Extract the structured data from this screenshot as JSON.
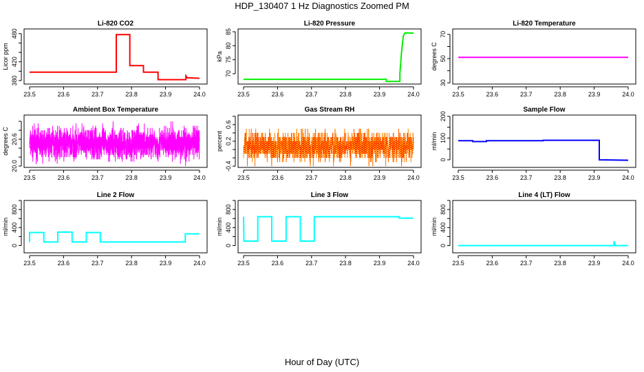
{
  "title": "HDP_130407  1 Hz Diagnostics Zoomed PM",
  "xlabel": "Hour of Day (UTC)",
  "chart_data": [
    {
      "type": "line",
      "title": "Li-820 CO2",
      "ylabel": "Licor ppm",
      "color": "#ff0000",
      "xlim": [
        23.5,
        24.0
      ],
      "ylim": [
        372.6,
        490
      ],
      "yticks": [
        380,
        400,
        420,
        440,
        460,
        480
      ],
      "ylabels": [
        "380",
        "420",
        "480"
      ],
      "ylabel_values": [
        380,
        420,
        480
      ],
      "series": [
        {
          "name": "CO2",
          "x": [
            23.5,
            23.755,
            23.755,
            23.795,
            23.795,
            23.835,
            23.835,
            23.878,
            23.878,
            23.96,
            23.96,
            23.962,
            23.962,
            24.0
          ],
          "y": [
            398,
            398,
            478,
            478,
            412,
            412,
            398,
            398,
            382,
            382,
            390,
            388,
            386,
            385
          ]
        }
      ]
    },
    {
      "type": "line",
      "title": "Li-820 Pressure",
      "ylabel": "kPa",
      "color": "#00ee00",
      "xlim": [
        23.5,
        24.0
      ],
      "ylim": [
        66.3,
        86
      ],
      "yticks": [
        70,
        75,
        80,
        85
      ],
      "ylabels": [
        "70",
        "75",
        "80",
        "85"
      ],
      "ylabel_values": [
        70,
        75,
        80,
        85
      ],
      "series": [
        {
          "name": "Pressure",
          "x": [
            23.5,
            23.92,
            23.92,
            23.96,
            23.96,
            23.965,
            23.97,
            23.975,
            24.0
          ],
          "y": [
            68,
            68,
            67.2,
            67.2,
            70,
            78,
            83.5,
            84.6,
            84.5
          ]
        }
      ]
    },
    {
      "type": "line",
      "title": "Li-820 Temperature",
      "ylabel": "degrees C",
      "color": "#ff00ff",
      "xlim": [
        23.5,
        24.0
      ],
      "ylim": [
        29,
        74.5
      ],
      "yticks": [
        30,
        40,
        50,
        60,
        70
      ],
      "ylabels": [
        "30",
        "50",
        "70"
      ],
      "ylabel_values": [
        30,
        50,
        70
      ],
      "series": [
        {
          "name": "Temperature",
          "x": [
            23.5,
            24.0
          ],
          "y": [
            51,
            51
          ]
        }
      ]
    },
    {
      "type": "line",
      "title": "Ambient Box Temperature",
      "ylabel": "degrees C",
      "color": "#ff00ff",
      "xlim": [
        23.5,
        24.0
      ],
      "ylim": [
        19.97,
        21.14
      ],
      "yticks": [
        20.0,
        20.2,
        20.4,
        20.6,
        20.8,
        21.0
      ],
      "ylabels": [
        "20.0",
        "20.6"
      ],
      "ylabel_values": [
        20.0,
        20.6
      ],
      "series": [
        {
          "name": "Ambient",
          "noise": {
            "n": 1800,
            "mean": 20.5,
            "spread": 0.22,
            "min": 20.0,
            "max": 21.1,
            "step": 0.05,
            "seed": 7
          }
        }
      ]
    },
    {
      "type": "line",
      "title": "Gas Stream RH",
      "ylabel": "percent",
      "color": "#ffcc00",
      "color2": "#ff2200",
      "xlim": [
        23.5,
        24.0
      ],
      "ylim": [
        -0.43,
        0.83
      ],
      "yticks": [
        -0.4,
        -0.2,
        0.0,
        0.2,
        0.4,
        0.6,
        0.8
      ],
      "ylabels": [
        "-0.4",
        "0.2",
        "0.6"
      ],
      "ylabel_values": [
        -0.4,
        0.2,
        0.6
      ],
      "series": [
        {
          "name": "RH",
          "noise": {
            "n": 1800,
            "mean": 0.08,
            "spread": 0.22,
            "min": -0.4,
            "max": 0.8,
            "step": 0.1,
            "seed": 11
          }
        }
      ]
    },
    {
      "type": "line",
      "title": "Sample Flow",
      "ylabel": "ml/min",
      "color": "#0000ff",
      "xlim": [
        23.5,
        24.0
      ],
      "ylim": [
        -35,
        206
      ],
      "yticks": [
        0,
        50,
        100,
        150,
        200
      ],
      "ylabels": [
        "0",
        "100",
        "200"
      ],
      "ylabel_values": [
        0,
        100,
        200
      ],
      "series": [
        {
          "name": "Sample",
          "x": [
            23.5,
            23.543,
            23.543,
            23.583,
            23.583,
            23.75,
            23.75,
            23.915,
            23.915,
            24.0
          ],
          "y": [
            88,
            88,
            84,
            84,
            88,
            88,
            90,
            90,
            0,
            -2
          ]
        }
      ]
    },
    {
      "type": "line",
      "title": "Line 2 Flow",
      "ylabel": "ml/min",
      "color": "#00ffff",
      "xlim": [
        23.5,
        24.0
      ],
      "ylim": [
        -160,
        1000
      ],
      "yticks": [
        0,
        200,
        400,
        600,
        800,
        1000
      ],
      "ylabels": [
        "0",
        "400",
        "800"
      ],
      "ylabel_values": [
        0,
        400,
        800
      ],
      "series": [
        {
          "name": "Line 2",
          "x": [
            23.5,
            23.5,
            23.542,
            23.542,
            23.583,
            23.583,
            23.625,
            23.625,
            23.667,
            23.667,
            23.708,
            23.708,
            23.958,
            23.958,
            24.0
          ],
          "y": [
            80,
            290,
            290,
            80,
            80,
            300,
            300,
            80,
            80,
            290,
            290,
            80,
            80,
            260,
            260
          ]
        }
      ]
    },
    {
      "type": "line",
      "title": "Line 3 Flow",
      "ylabel": "ml/min",
      "color": "#00ffff",
      "xlim": [
        23.5,
        24.0
      ],
      "ylim": [
        -160,
        1000
      ],
      "yticks": [
        0,
        200,
        400,
        600,
        800,
        1000
      ],
      "ylabels": [
        "0",
        "400",
        "800"
      ],
      "ylabel_values": [
        0,
        400,
        800
      ],
      "series": [
        {
          "name": "Line 3",
          "x": [
            23.5,
            23.501,
            23.542,
            23.542,
            23.583,
            23.583,
            23.625,
            23.625,
            23.667,
            23.667,
            23.708,
            23.708,
            23.958,
            23.958,
            24.0
          ],
          "y": [
            640,
            100,
            100,
            640,
            640,
            100,
            100,
            640,
            640,
            100,
            100,
            640,
            640,
            610,
            610
          ]
        }
      ]
    },
    {
      "type": "line",
      "title": "Line 4 (LT) Flow",
      "ylabel": "ml/min",
      "color": "#00ffff",
      "xlim": [
        23.5,
        24.0
      ],
      "ylim": [
        -160,
        1000
      ],
      "yticks": [
        0,
        200,
        400,
        600,
        800,
        1000
      ],
      "ylabels": [
        "0",
        "400",
        "800"
      ],
      "ylabel_values": [
        0,
        400,
        800
      ],
      "series": [
        {
          "name": "Line 4",
          "x": [
            23.5,
            23.958,
            23.958,
            23.96,
            23.96,
            23.962,
            23.962,
            24.0
          ],
          "y": [
            0,
            0,
            80,
            80,
            30,
            30,
            0,
            0
          ]
        }
      ]
    }
  ],
  "xticks": [
    "23.5",
    "23.6",
    "23.7",
    "23.8",
    "23.9",
    "24.0"
  ]
}
